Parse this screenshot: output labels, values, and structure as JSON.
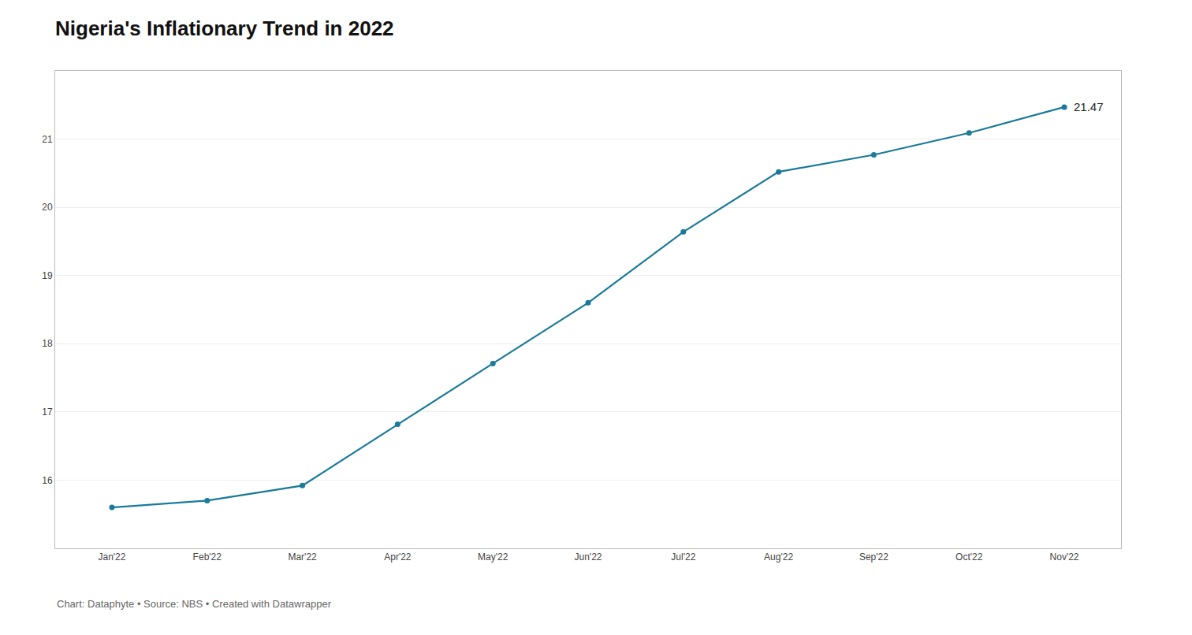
{
  "chart_data": {
    "type": "line",
    "title": "Nigeria's Inflationary Trend in 2022",
    "categories": [
      "Jan'22",
      "Feb'22",
      "Mar'22",
      "Apr'22",
      "May'22",
      "Jun'22",
      "Jul'22",
      "Aug'22",
      "Sep'22",
      "Oct'22",
      "Nov'22"
    ],
    "values": [
      15.6,
      15.7,
      15.92,
      16.82,
      17.71,
      18.6,
      19.64,
      20.52,
      20.77,
      21.09,
      21.47
    ],
    "color": "#1a7a9a",
    "marker": "circle",
    "ylim": [
      15.0,
      22.0
    ],
    "yticks": [
      16,
      17,
      18,
      19,
      20,
      21
    ],
    "grid": true,
    "annotations": [
      {
        "text": "21.47",
        "x": "Nov'22",
        "y": 21.47
      }
    ],
    "caption": "Chart: Dataphyte • Source: NBS • Created with Datawrapper"
  }
}
